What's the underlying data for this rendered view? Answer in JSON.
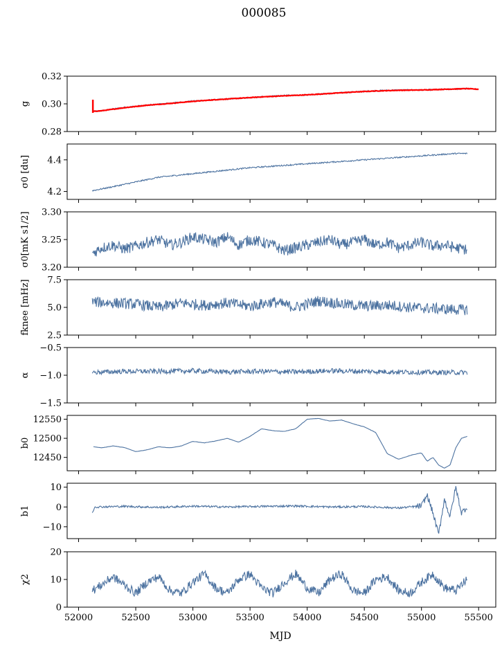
{
  "chart_data": {
    "type": "line",
    "title": "000085",
    "xlabel": "MJD",
    "xlim": [
      51900,
      55650
    ],
    "xticks": [
      52000,
      52500,
      53000,
      53500,
      54000,
      54500,
      55000,
      55500
    ],
    "xtick_labels": [
      "52000",
      "52500",
      "53000",
      "53500",
      "54000",
      "54500",
      "55000",
      "55500"
    ],
    "data_range": [
      52120,
      55400
    ],
    "line_color": "#4c72a0",
    "fit_color": "#ff0000",
    "grid": false,
    "panels": [
      {
        "ylabel": "g",
        "ylim": [
          0.28,
          0.32
        ],
        "yticks": [
          0.28,
          0.3,
          0.32
        ],
        "ytick_labels": [
          "0.28",
          "0.30",
          "0.32"
        ],
        "series": [
          {
            "x": [
              52120,
              52200,
              52400,
              52600,
              52800,
              53000,
              53200,
              53400,
              53600,
              53800,
              54000,
              54200,
              54400,
              54600,
              54800,
              55000,
              55200,
              55400
            ],
            "y": [
              0.2945,
              0.295,
              0.2975,
              0.299,
              0.3005,
              0.302,
              0.303,
              0.304,
              0.305,
              0.306,
              0.3065,
              0.3075,
              0.3085,
              0.3095,
              0.31,
              0.31,
              0.3105,
              0.311
            ]
          },
          {
            "x": [
              52120,
              52200,
              52400,
              52600,
              52800,
              53000,
              53200,
              53400,
              53600,
              53800,
              54000,
              54200,
              54400,
              54600,
              54800,
              55000,
              55200,
              55400,
              55500
            ],
            "y": [
              0.2945,
              0.295,
              0.2972,
              0.299,
              0.3003,
              0.3018,
              0.303,
              0.304,
              0.305,
              0.3058,
              0.3065,
              0.3075,
              0.3085,
              0.3093,
              0.3098,
              0.31,
              0.3105,
              0.311,
              0.3105
            ]
          }
        ]
      },
      {
        "ylabel": "σ0 [du]",
        "ylim": [
          4.15,
          4.5
        ],
        "yticks": [
          4.2,
          4.4
        ],
        "ytick_labels": [
          "4.2",
          "4.4"
        ],
        "series": [
          {
            "x": [
              52120,
              52300,
              52500,
              52700,
              52900,
              53100,
              53300,
              53500,
              53700,
              53900,
              54100,
              54300,
              54500,
              54700,
              54900,
              55100,
              55300,
              55400
            ],
            "y": [
              4.205,
              4.23,
              4.26,
              4.29,
              4.305,
              4.32,
              4.335,
              4.35,
              4.36,
              4.37,
              4.38,
              4.39,
              4.4,
              4.41,
              4.42,
              4.43,
              4.44,
              4.44
            ]
          }
        ]
      },
      {
        "ylabel": "σ0[mK s1/2]",
        "ylim": [
          3.2,
          3.3
        ],
        "yticks": [
          3.2,
          3.25,
          3.3
        ],
        "ytick_labels": [
          "3.20",
          "3.25",
          "3.30"
        ],
        "series": [
          {
            "x": [
              52120,
              52200,
              52300,
              52400,
              52500,
              52600,
              52700,
              52800,
              52900,
              53000,
              53100,
              53200,
              53300,
              53400,
              53500,
              53600,
              53700,
              53800,
              53900,
              54000,
              54100,
              54200,
              54300,
              54400,
              54500,
              54600,
              54700,
              54800,
              54900,
              55000,
              55100,
              55200,
              55300,
              55400
            ],
            "y": [
              3.225,
              3.235,
              3.24,
              3.233,
              3.238,
              3.245,
              3.25,
              3.24,
              3.245,
              3.255,
              3.25,
              3.245,
              3.255,
              3.24,
              3.25,
              3.245,
              3.24,
              3.23,
              3.235,
              3.24,
              3.245,
              3.25,
              3.24,
              3.245,
              3.25,
              3.24,
              3.245,
              3.235,
              3.24,
              3.245,
              3.238,
              3.24,
              3.235,
              3.232
            ]
          }
        ]
      },
      {
        "ylabel": "fknee [mHz]",
        "ylim": [
          2.5,
          7.5
        ],
        "yticks": [
          2.5,
          5.0,
          7.5
        ],
        "ytick_labels": [
          "2.5",
          "5.0",
          "7.5"
        ],
        "series": [
          {
            "x": [
              52120,
              52300,
              52500,
              52700,
              52900,
              53100,
              53300,
              53500,
              53700,
              53900,
              54100,
              54300,
              54500,
              54700,
              54900,
              55100,
              55300,
              55400
            ],
            "y": [
              5.5,
              5.4,
              5.3,
              5.0,
              5.4,
              5.2,
              5.4,
              5.1,
              5.5,
              5.0,
              5.6,
              5.3,
              5.1,
              5.2,
              5.0,
              4.9,
              4.8,
              4.8
            ]
          }
        ]
      },
      {
        "ylabel": "α",
        "ylim": [
          -1.5,
          -0.5
        ],
        "yticks": [
          -1.5,
          -1.0,
          -0.5
        ],
        "ytick_labels": [
          "−1.5",
          "−1.0",
          "−0.5"
        ],
        "series": [
          {
            "x": [
              52120,
              52400,
              52700,
              53000,
              53300,
              53600,
              53900,
              54200,
              54500,
              54800,
              55100,
              55400
            ],
            "y": [
              -0.95,
              -0.93,
              -0.93,
              -0.92,
              -0.94,
              -0.93,
              -0.94,
              -0.92,
              -0.93,
              -0.94,
              -0.95,
              -0.95
            ]
          }
        ]
      },
      {
        "ylabel": "b0",
        "ylim": [
          12415,
          12560
        ],
        "yticks": [
          12450,
          12500,
          12550
        ],
        "ytick_labels": [
          "12450",
          "12500",
          "12550"
        ],
        "series": [
          {
            "x": [
              52130,
              52200,
              52300,
              52400,
              52500,
              52600,
              52700,
              52800,
              52900,
              53000,
              53100,
              53200,
              53300,
              53400,
              53500,
              53600,
              53700,
              53800,
              53900,
              54000,
              54100,
              54200,
              54300,
              54400,
              54500,
              54600,
              54700,
              54800,
              54900,
              55000,
              55050,
              55100,
              55150,
              55200,
              55250,
              55300,
              55350,
              55400
            ],
            "y": [
              12478,
              12475,
              12480,
              12476,
              12465,
              12470,
              12478,
              12475,
              12480,
              12492,
              12488,
              12493,
              12500,
              12490,
              12505,
              12525,
              12520,
              12518,
              12525,
              12550,
              12552,
              12545,
              12548,
              12538,
              12530,
              12515,
              12460,
              12445,
              12455,
              12462,
              12440,
              12450,
              12430,
              12422,
              12430,
              12475,
              12500,
              12505
            ]
          }
        ]
      },
      {
        "ylabel": "b1",
        "ylim": [
          -16,
          12
        ],
        "yticks": [
          -10,
          0,
          10
        ],
        "ytick_labels": [
          "−10",
          "0",
          "10"
        ],
        "series": [
          {
            "x": [
              52120,
              52140,
              52400,
              52700,
              53000,
              53300,
              53600,
              53900,
              54200,
              54500,
              54800,
              55000,
              55050,
              55100,
              55150,
              55200,
              55250,
              55300,
              55350,
              55400
            ],
            "y": [
              -3,
              0,
              0.3,
              -0.2,
              0.4,
              0,
              0.3,
              0.5,
              0,
              0.2,
              -0.5,
              0.5,
              6,
              -3,
              -14,
              4,
              -5,
              10,
              -3,
              0
            ]
          }
        ]
      },
      {
        "ylabel": "χ2",
        "ylim": [
          0,
          20
        ],
        "yticks": [
          0,
          10,
          20
        ],
        "ytick_labels": [
          "0",
          "10",
          "20"
        ],
        "series": [
          {
            "x": [
              52120,
              52200,
              52300,
              52400,
              52500,
              52600,
              52700,
              52800,
              52900,
              53000,
              53100,
              53200,
              53300,
              53400,
              53500,
              53600,
              53700,
              53800,
              53900,
              54000,
              54100,
              54200,
              54300,
              54400,
              54500,
              54600,
              54700,
              54800,
              54900,
              55000,
              55100,
              55200,
              55300,
              55400
            ],
            "y": [
              6,
              8,
              11,
              8,
              5,
              9,
              11,
              6,
              5,
              9,
              12,
              7,
              5,
              10,
              12,
              7,
              5,
              9,
              12,
              7,
              5,
              10,
              12,
              6,
              5,
              10,
              11,
              6,
              5,
              9,
              12,
              7,
              6,
              10
            ]
          }
        ]
      }
    ]
  }
}
